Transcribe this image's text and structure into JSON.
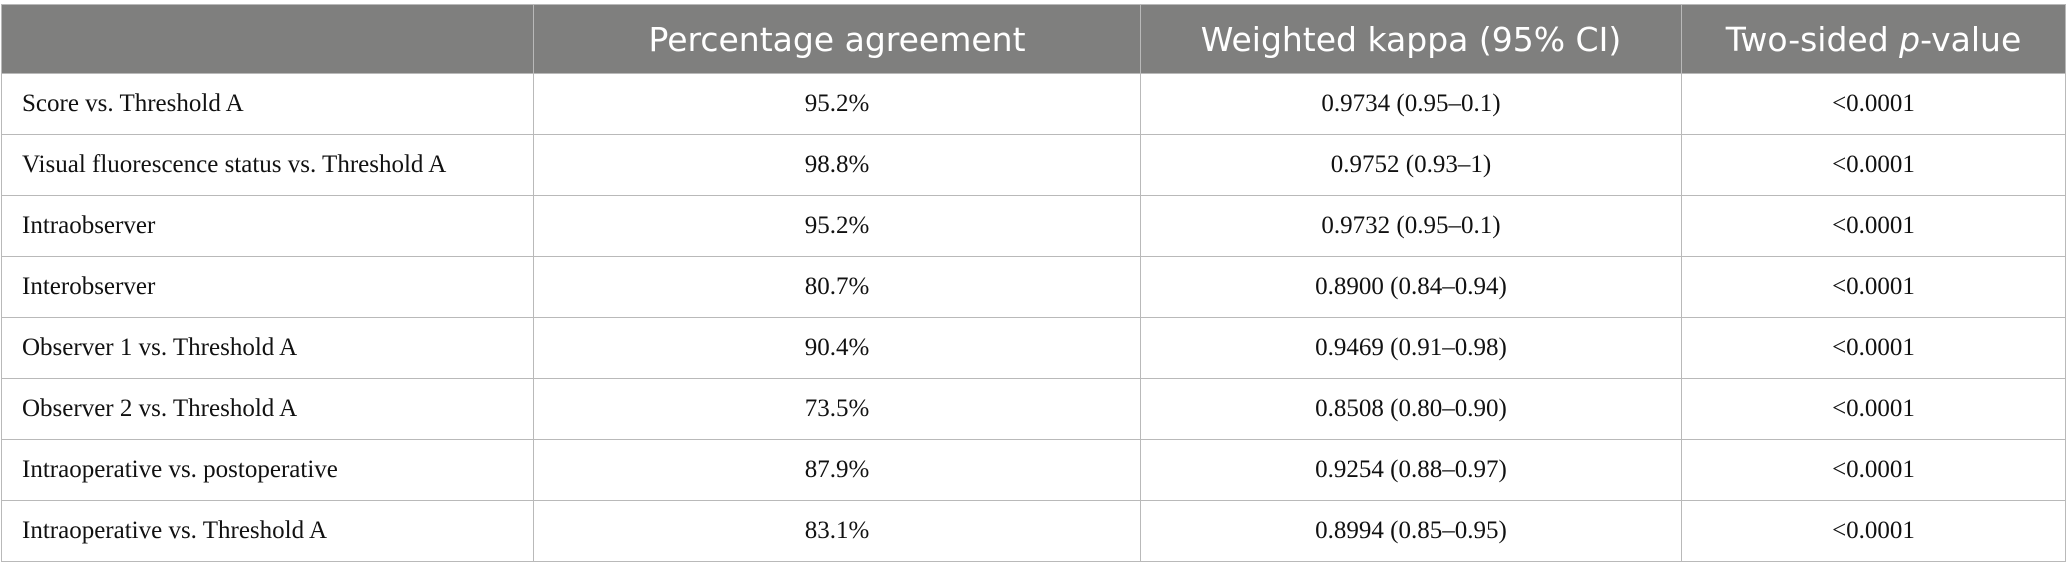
{
  "table": {
    "headers": [
      {
        "parts": [
          "Percentage agreement"
        ]
      },
      {
        "parts": [
          "Weighted kappa (95% CI)"
        ]
      },
      {
        "parts": [
          "Two-sided ",
          "p",
          "-value"
        ]
      }
    ],
    "rows": [
      [
        "Score vs. Threshold A",
        "95.2%",
        "0.9734 (0.95–0.1)",
        "<0.0001"
      ],
      [
        "Visual fluorescence status vs. Threshold A",
        "98.8%",
        "0.9752 (0.93–1)",
        "<0.0001"
      ],
      [
        "Intraobserver",
        "95.2%",
        "0.9732 (0.95–0.1)",
        "<0.0001"
      ],
      [
        "Interobserver",
        "80.7%",
        "0.8900 (0.84–0.94)",
        "<0.0001"
      ],
      [
        "Observer 1 vs. Threshold A",
        "90.4%",
        "0.9469 (0.91–0.98)",
        "<0.0001"
      ],
      [
        "Observer 2 vs. Threshold A",
        "73.5%",
        "0.8508 (0.80–0.90)",
        "<0.0001"
      ],
      [
        "Intraoperative vs. postoperative",
        "87.9%",
        "0.9254 (0.88–0.97)",
        "<0.0001"
      ],
      [
        "Intraoperative vs. Threshold A",
        "83.1%",
        "0.8994 (0.85–0.95)",
        "<0.0001"
      ]
    ]
  }
}
